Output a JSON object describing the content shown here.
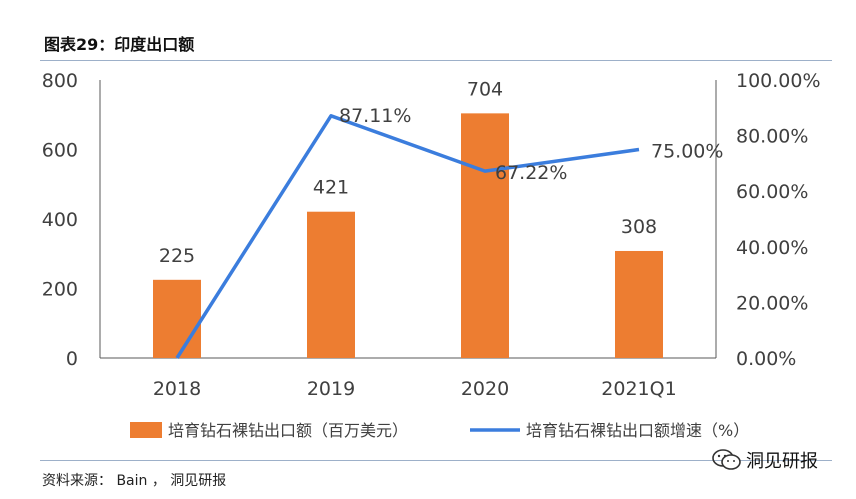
{
  "title": "图表29：印度出口额",
  "source": "资料来源： Bain ， 洞见研报",
  "brand": "洞见研报",
  "left_mark": "",
  "colors": {
    "bar": "#ED7D31",
    "line": "#3B7DDD",
    "rule": "#9db0c9"
  },
  "chart_data": {
    "type": "bar",
    "categories": [
      "2018",
      "2019",
      "2020",
      "2021Q1"
    ],
    "series": [
      {
        "name": "培育钻石裸钻出口额（百万美元）",
        "type": "bar",
        "axis": "left",
        "values": [
          225,
          421,
          704,
          308
        ],
        "labels": [
          "225",
          "421",
          "704",
          "308"
        ]
      },
      {
        "name": "培育钻石裸钻出口额增速（%）",
        "type": "line",
        "axis": "right",
        "values": [
          0,
          87.11,
          67.22,
          75.0
        ],
        "labels": [
          "",
          "87.11%",
          "67.22%",
          "75.00%"
        ]
      }
    ],
    "y_left": {
      "ylim": [
        0,
        800
      ],
      "ticks": [
        "0",
        "200",
        "400",
        "600",
        "800"
      ]
    },
    "y_right": {
      "ylim": [
        0,
        100
      ],
      "ticks": [
        "0.00%",
        "20.00%",
        "40.00%",
        "60.00%",
        "80.00%",
        "100.00%"
      ]
    },
    "legend": "bottom"
  }
}
